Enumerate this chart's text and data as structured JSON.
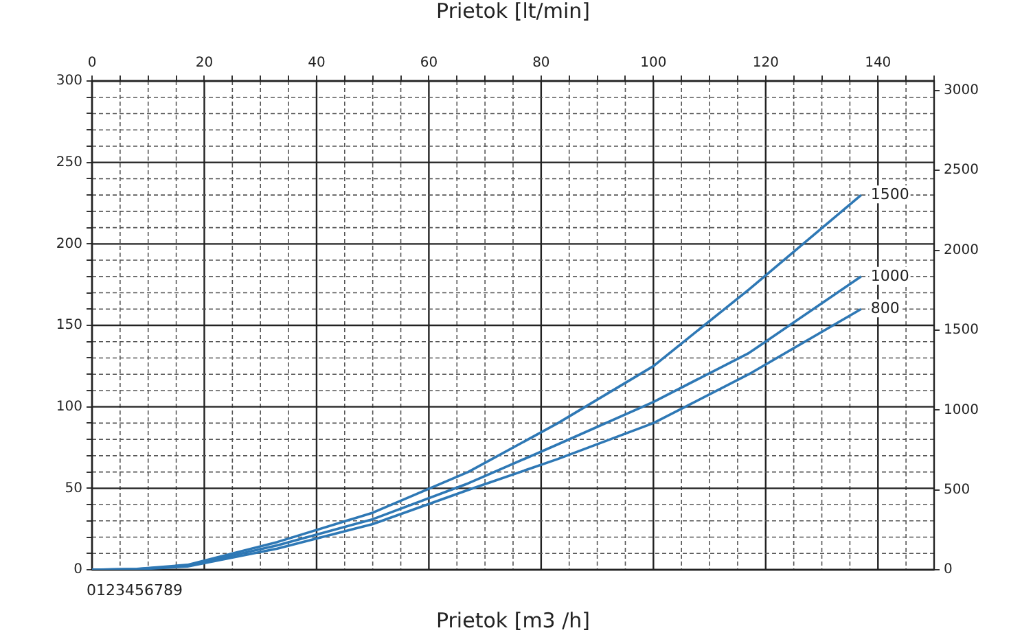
{
  "chart_data": {
    "type": "line",
    "xlabel": "Prietok [lt/min]",
    "x2label": "Prietok [m3 /h]",
    "x": [
      0,
      8,
      17,
      33,
      50,
      67,
      83,
      100,
      117,
      137
    ],
    "series": [
      {
        "name": "1500",
        "color": "#2e78b5",
        "values": [
          0,
          0.5,
          3,
          17,
          35,
          60,
          90,
          125,
          172,
          230
        ]
      },
      {
        "name": "1000",
        "color": "#2e78b5",
        "values": [
          0,
          0.4,
          2.5,
          15,
          31,
          53,
          77,
          103,
          133,
          180
        ]
      },
      {
        "name": "800",
        "color": "#2e78b5",
        "values": [
          0,
          0.3,
          2,
          13,
          28,
          49,
          68,
          90,
          120,
          160
        ]
      }
    ],
    "xlim": [
      0,
      150
    ],
    "xticks": [
      0,
      {
        "value": 5,
        "label": null
      },
      {
        "value": 10,
        "label": null
      },
      {
        "value": 15,
        "label": null
      },
      20,
      {
        "value": 25,
        "label": null
      },
      {
        "value": 30,
        "label": null
      },
      {
        "value": 35,
        "label": null
      },
      40,
      {
        "value": 45,
        "label": null
      },
      {
        "value": 50,
        "label": null
      },
      {
        "value": 55,
        "label": null
      },
      60,
      {
        "value": 65,
        "label": null
      },
      {
        "value": 70,
        "label": null
      },
      {
        "value": 75,
        "label": null
      },
      80,
      {
        "value": 85,
        "label": null
      },
      {
        "value": 90,
        "label": null
      },
      {
        "value": 95,
        "label": null
      },
      100,
      {
        "value": 105,
        "label": null
      },
      {
        "value": 110,
        "label": null
      },
      {
        "value": 115,
        "label": null
      },
      120,
      {
        "value": 125,
        "label": null
      },
      {
        "value": 130,
        "label": null
      },
      {
        "value": 135,
        "label": null
      },
      140,
      {
        "value": 145,
        "label": null
      },
      {
        "value": 150,
        "label": null
      }
    ],
    "ylim": [
      0,
      300
    ],
    "yticks": [
      0,
      {
        "value": 10,
        "label": null
      },
      {
        "value": 20,
        "label": null
      },
      {
        "value": 30,
        "label": null
      },
      {
        "value": 40,
        "label": null
      },
      50,
      {
        "value": 60,
        "label": null
      },
      {
        "value": 70,
        "label": null
      },
      {
        "value": 80,
        "label": null
      },
      {
        "value": 90,
        "label": null
      },
      100,
      {
        "value": 110,
        "label": null
      },
      {
        "value": 120,
        "label": null
      },
      {
        "value": 130,
        "label": null
      },
      {
        "value": 140,
        "label": null
      },
      150,
      {
        "value": 160,
        "label": null
      },
      {
        "value": 170,
        "label": null
      },
      {
        "value": 180,
        "label": null
      },
      {
        "value": 190,
        "label": null
      },
      200,
      {
        "value": 210,
        "label": null
      },
      {
        "value": 220,
        "label": null
      },
      {
        "value": 230,
        "label": null
      },
      {
        "value": 240,
        "label": null
      },
      250,
      {
        "value": 260,
        "label": null
      },
      {
        "value": 270,
        "label": null
      },
      {
        "value": 280,
        "label": null
      },
      {
        "value": 290,
        "label": null
      },
      300
    ],
    "y2lim": [
      0,
      3060
    ],
    "y2ticks": [
      0,
      500,
      1000,
      1500,
      2000,
      2500,
      3000
    ],
    "grid": true,
    "marker": "none",
    "line_style": "solid",
    "annotations": [
      "0123456789"
    ]
  }
}
